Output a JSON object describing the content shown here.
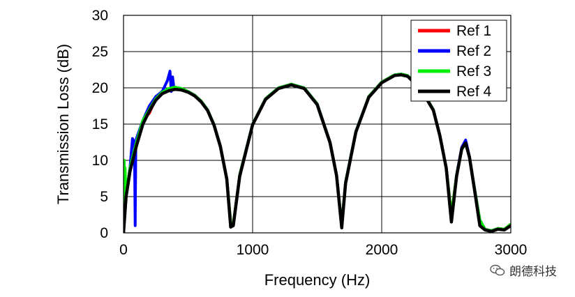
{
  "chart_data": {
    "type": "line",
    "xlabel": "Frequency (Hz)",
    "ylabel": "Transmission Loss (dB)",
    "xlim": [
      0,
      3000
    ],
    "ylim": [
      0,
      30
    ],
    "xticks": [
      0,
      1000,
      2000,
      3000
    ],
    "yticks": [
      0,
      5,
      10,
      15,
      20,
      25,
      30
    ],
    "grid": true,
    "legend_position": "top-right",
    "series": [
      {
        "name": "Ref 1",
        "color": "#ff0000",
        "x": [
          0,
          20,
          50,
          100,
          150,
          200,
          250,
          300,
          350,
          400,
          450,
          500,
          550,
          600,
          650,
          700,
          750,
          800,
          830,
          850,
          900,
          1000,
          1100,
          1200,
          1300,
          1400,
          1500,
          1600,
          1650,
          1690,
          1720,
          1800,
          1900,
          2000,
          2100,
          2150,
          2200,
          2300,
          2400,
          2450,
          2500,
          2540,
          2580,
          2620,
          2650,
          2680,
          2720,
          2760,
          2800,
          2850,
          2900,
          2950,
          3000
        ],
        "y": [
          0,
          5,
          9,
          12.5,
          15.5,
          16.5,
          18.5,
          19.4,
          19.8,
          19.9,
          19.8,
          19.5,
          19.0,
          18.2,
          17.0,
          15.0,
          12.0,
          7.5,
          1.5,
          1.2,
          8.0,
          15.0,
          18.5,
          20.0,
          20.5,
          20.0,
          17.8,
          12.5,
          8.0,
          1.2,
          7.0,
          14.0,
          18.8,
          20.8,
          21.8,
          21.9,
          21.7,
          20.0,
          17.0,
          13.5,
          9.0,
          2.5,
          8.0,
          11.5,
          12.3,
          10.5,
          6.0,
          1.8,
          0.5,
          0.3,
          0.6,
          0.5,
          1.2
        ]
      },
      {
        "name": "Ref 2",
        "color": "#0000ff",
        "x": [
          0,
          20,
          50,
          70,
          85,
          90,
          95,
          100,
          110,
          130,
          150,
          200,
          250,
          300,
          340,
          360,
          370,
          380,
          390,
          400,
          420,
          450,
          500,
          550,
          600,
          650,
          700,
          750,
          800,
          830,
          850,
          900,
          1000,
          1100,
          1200,
          1300,
          1400,
          1500,
          1600,
          1650,
          1690,
          1720,
          1800,
          1900,
          2000,
          2100,
          2150,
          2200,
          2300,
          2400,
          2450,
          2500,
          2540,
          2580,
          2620,
          2650,
          2680,
          2720,
          2760,
          2800,
          2850,
          2900,
          2950,
          3000
        ],
        "y": [
          0,
          5,
          9,
          13.0,
          12.5,
          1.0,
          12.0,
          13.0,
          13.5,
          14.5,
          15.5,
          17.5,
          18.8,
          19.5,
          21.0,
          22.3,
          19.5,
          21.5,
          20.0,
          19.9,
          19.9,
          19.8,
          19.5,
          19.0,
          18.2,
          17.0,
          15.0,
          12.0,
          7.5,
          1.2,
          1.0,
          8.0,
          15.0,
          18.5,
          20.0,
          20.5,
          20.0,
          17.8,
          12.5,
          8.0,
          1.0,
          7.0,
          14.0,
          18.8,
          20.8,
          21.8,
          21.9,
          21.7,
          20.0,
          17.0,
          13.5,
          9.0,
          2.0,
          8.0,
          11.8,
          12.8,
          10.5,
          6.0,
          1.8,
          0.5,
          0.3,
          0.6,
          0.5,
          1.0
        ]
      },
      {
        "name": "Ref 3",
        "color": "#00ee00",
        "x": [
          0,
          5,
          8,
          12,
          20,
          50,
          100,
          150,
          200,
          250,
          300,
          350,
          400,
          450,
          500,
          550,
          600,
          650,
          700,
          750,
          800,
          830,
          850,
          900,
          1000,
          1100,
          1200,
          1300,
          1400,
          1500,
          1600,
          1650,
          1690,
          1720,
          1800,
          1900,
          2000,
          2100,
          2150,
          2200,
          2300,
          2400,
          2450,
          2500,
          2540,
          2580,
          2620,
          2650,
          2680,
          2720,
          2760,
          2800,
          2850,
          2900,
          2950,
          3000
        ],
        "y": [
          0,
          10.0,
          2.0,
          9.0,
          5.0,
          9.0,
          12.5,
          15.5,
          17.0,
          18.5,
          19.4,
          19.9,
          20.1,
          19.9,
          19.5,
          19.0,
          18.2,
          17.0,
          15.0,
          12.0,
          7.5,
          1.5,
          1.2,
          8.0,
          15.0,
          18.5,
          20.0,
          20.5,
          20.0,
          17.8,
          12.5,
          8.0,
          1.2,
          7.0,
          14.0,
          18.8,
          20.8,
          21.8,
          21.9,
          21.7,
          20.0,
          17.0,
          13.5,
          9.0,
          2.5,
          8.0,
          11.5,
          12.3,
          10.5,
          6.0,
          1.8,
          0.5,
          0.3,
          0.6,
          0.5,
          1.2
        ]
      },
      {
        "name": "Ref 4",
        "color": "#000000",
        "x": [
          0,
          20,
          50,
          100,
          150,
          200,
          250,
          300,
          350,
          400,
          450,
          500,
          550,
          600,
          650,
          700,
          750,
          800,
          830,
          850,
          900,
          1000,
          1100,
          1200,
          1300,
          1400,
          1500,
          1600,
          1650,
          1690,
          1720,
          1800,
          1900,
          2000,
          2100,
          2150,
          2200,
          2300,
          2400,
          2450,
          2500,
          2540,
          2580,
          2620,
          2650,
          2680,
          2720,
          2760,
          2800,
          2850,
          2900,
          2950,
          3000
        ],
        "y": [
          0,
          5,
          8.5,
          12.0,
          15.0,
          16.8,
          18.3,
          19.2,
          19.6,
          19.8,
          19.7,
          19.4,
          18.9,
          18.1,
          16.9,
          14.9,
          11.9,
          7.4,
          0.8,
          1.0,
          7.8,
          14.9,
          18.4,
          19.9,
          20.4,
          19.9,
          17.7,
          12.4,
          7.9,
          0.7,
          6.8,
          13.9,
          18.7,
          20.7,
          21.7,
          21.8,
          21.6,
          19.9,
          16.9,
          13.4,
          8.9,
          1.5,
          7.8,
          11.6,
          12.4,
          10.4,
          5.8,
          1.0,
          0.4,
          0.2,
          0.5,
          0.4,
          1.0
        ]
      }
    ]
  },
  "watermark": {
    "text": "朗德科技",
    "icon": "wechat-icon"
  }
}
